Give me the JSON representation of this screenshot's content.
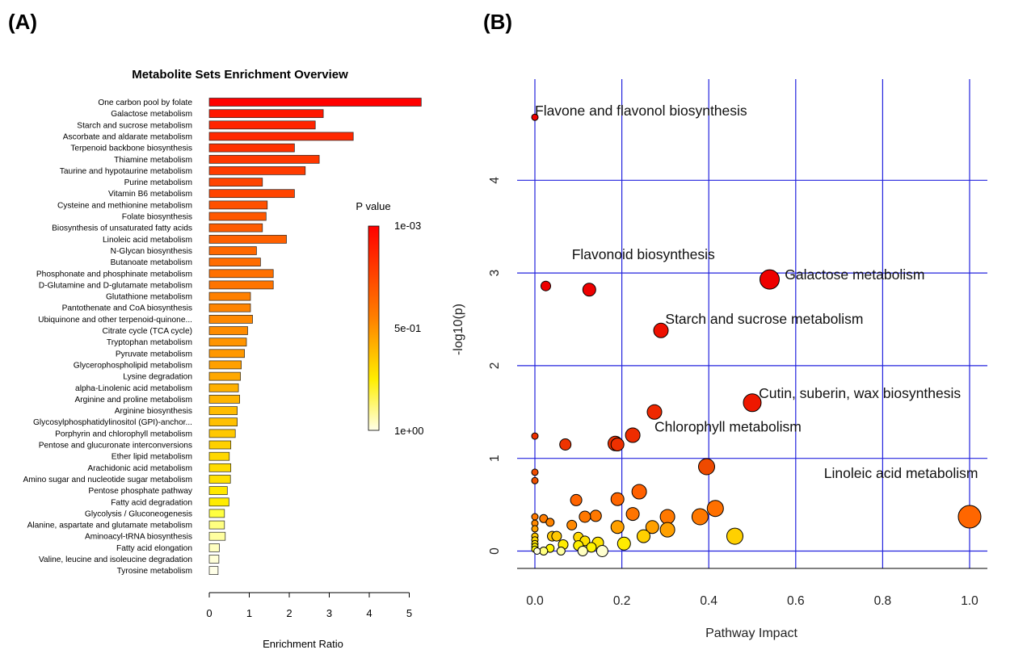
{
  "figure": {
    "panel_a_label": "(A)",
    "panel_b_label": "(B)"
  },
  "chart_data": [
    {
      "type": "bar",
      "orientation": "horizontal",
      "title": "Metabolite Sets Enrichment Overview",
      "xlabel": "Enrichment Ratio",
      "ylabel": "",
      "xlim": [
        0,
        5.3
      ],
      "xticks": [
        "0",
        "1",
        "2",
        "3",
        "4",
        "5"
      ],
      "grid": false,
      "legend": {
        "title": "P value",
        "placement": "right",
        "labels": [
          "1e-03",
          "5e-01",
          "1e+00"
        ],
        "color_scale": [
          "#ff0000",
          "#ff8000",
          "#ffff00",
          "#ffffe0"
        ]
      },
      "categories": [
        "One carbon pool by folate",
        "Galactose metabolism",
        "Starch and sucrose metabolism",
        "Ascorbate and aldarate metabolism",
        "Terpenoid backbone biosynthesis",
        "Thiamine metabolism",
        "Taurine and hypotaurine metabolism",
        "Purine metabolism",
        "Vitamin B6 metabolism",
        "Cysteine and methionine metabolism",
        "Folate biosynthesis",
        "Biosynthesis of unsaturated fatty acids",
        "Linoleic acid metabolism",
        "N-Glycan biosynthesis",
        "Butanoate metabolism",
        "Phosphonate and phosphinate metabolism",
        "D-Glutamine and D-glutamate metabolism",
        "Glutathione metabolism",
        "Pantothenate and CoA biosynthesis",
        "Ubiquinone and other terpenoid-quinone...",
        "Citrate cycle (TCA cycle)",
        "Tryptophan metabolism",
        "Pyruvate metabolism",
        "Glycerophospholipid metabolism",
        "Lysine degradation",
        "alpha-Linolenic acid metabolism",
        "Arginine and proline metabolism",
        "Arginine biosynthesis",
        "Glycosylphosphatidylinositol (GPI)-anchor...",
        "Porphyrin and chlorophyll metabolism",
        "Pentose and glucuronate interconversions",
        "Ether lipid metabolism",
        "Arachidonic acid metabolism",
        "Amino sugar and nucleotide sugar metabolism",
        "Pentose phosphate pathway",
        "Fatty acid degradation",
        "Glycolysis / Gluconeogenesis",
        "Alanine, aspartate and glutamate metabolism",
        "Aminoacyl-tRNA biosynthesis",
        "Fatty acid elongation",
        "Valine, leucine and isoleucine degradation",
        "Tyrosine metabolism"
      ],
      "values": [
        5.3,
        2.85,
        2.65,
        3.6,
        2.13,
        2.75,
        2.4,
        1.33,
        2.13,
        1.45,
        1.42,
        1.33,
        1.93,
        1.18,
        1.28,
        1.6,
        1.6,
        1.03,
        1.03,
        1.08,
        0.96,
        0.93,
        0.88,
        0.8,
        0.78,
        0.73,
        0.76,
        0.7,
        0.7,
        0.65,
        0.54,
        0.5,
        0.54,
        0.53,
        0.45,
        0.49,
        0.38,
        0.38,
        0.4,
        0.25,
        0.24,
        0.22
      ],
      "colors": [
        "#ff0000",
        "#ff1800",
        "#ff2400",
        "#ff2800",
        "#ff3000",
        "#ff3800",
        "#ff3c00",
        "#ff4400",
        "#ff4400",
        "#ff5000",
        "#ff5800",
        "#ff5c00",
        "#ff6000",
        "#ff6800",
        "#ff6c00",
        "#ff7000",
        "#ff7400",
        "#ff8000",
        "#ff8400",
        "#ff8800",
        "#ff8c00",
        "#ff9400",
        "#ff9800",
        "#ffa000",
        "#ffa800",
        "#ffb000",
        "#ffb400",
        "#ffbc00",
        "#ffc000",
        "#ffc800",
        "#ffd000",
        "#ffd800",
        "#ffdc00",
        "#ffe000",
        "#ffe800",
        "#ffec00",
        "#ffff40",
        "#ffff80",
        "#ffffa0",
        "#ffffc0",
        "#ffffd8",
        "#ffffe8"
      ]
    },
    {
      "type": "scatter",
      "title": "",
      "xlabel": "Pathway Impact",
      "ylabel": "-log10(p)",
      "xlim": [
        -0.04,
        1.04
      ],
      "ylim": [
        -0.2,
        4.9
      ],
      "xticks": [
        "0.0",
        "0.2",
        "0.4",
        "0.6",
        "0.8",
        "1.0"
      ],
      "yticks": [
        "0",
        "1",
        "2",
        "3",
        "4"
      ],
      "grid": true,
      "gridColor": "#2222dd",
      "annotations": [
        {
          "text": "Flavone and flavonol biosynthesis",
          "x": 0.0,
          "y": 4.7
        },
        {
          "text": "Flavonoid biosynthesis",
          "x": 0.085,
          "y": 3.15
        },
        {
          "text": "Galactose metabolism",
          "x": 0.575,
          "y": 2.93
        },
        {
          "text": "Starch and sucrose metabolism",
          "x": 0.3,
          "y": 2.45
        },
        {
          "text": "Cutin, suberin, wax biosynthesis",
          "x": 0.515,
          "y": 1.65
        },
        {
          "text": "Chlorophyll metabolism",
          "x": 0.275,
          "y": 1.29
        },
        {
          "text": "Linoleic acid metabolism",
          "x": 0.665,
          "y": 0.79
        }
      ],
      "points": [
        {
          "x": 0.0,
          "y": 4.68,
          "size": 4,
          "color": "#ee0000"
        },
        {
          "x": 0.025,
          "y": 2.86,
          "size": 6,
          "color": "#ee0000"
        },
        {
          "x": 0.125,
          "y": 2.82,
          "size": 8,
          "color": "#ee0000"
        },
        {
          "x": 0.54,
          "y": 2.93,
          "size": 12,
          "color": "#ee0000"
        },
        {
          "x": 0.29,
          "y": 2.38,
          "size": 9,
          "color": "#ee1000"
        },
        {
          "x": 0.5,
          "y": 1.6,
          "size": 11,
          "color": "#ee1800"
        },
        {
          "x": 0.275,
          "y": 1.5,
          "size": 9,
          "color": "#ee2800"
        },
        {
          "x": 0.225,
          "y": 1.25,
          "size": 9,
          "color": "#ee2c00"
        },
        {
          "x": 0.185,
          "y": 1.16,
          "size": 9,
          "color": "#ee3000"
        },
        {
          "x": 0.19,
          "y": 1.15,
          "size": 8,
          "color": "#ee3000"
        },
        {
          "x": 0.07,
          "y": 1.15,
          "size": 7,
          "color": "#ee3400"
        },
        {
          "x": 0.0,
          "y": 1.24,
          "size": 4,
          "color": "#ee3000"
        },
        {
          "x": 0.395,
          "y": 0.91,
          "size": 10,
          "color": "#ee4a00"
        },
        {
          "x": 0.0,
          "y": 0.85,
          "size": 4,
          "color": "#ee4c00"
        },
        {
          "x": 0.0,
          "y": 0.76,
          "size": 4,
          "color": "#ee5000"
        },
        {
          "x": 1.0,
          "y": 0.37,
          "size": 14,
          "color": "#ff6600"
        },
        {
          "x": 0.24,
          "y": 0.64,
          "size": 9,
          "color": "#ff6000"
        },
        {
          "x": 0.095,
          "y": 0.55,
          "size": 7,
          "color": "#ff6400"
        },
        {
          "x": 0.19,
          "y": 0.56,
          "size": 8,
          "color": "#ff6600"
        },
        {
          "x": 0.415,
          "y": 0.46,
          "size": 10,
          "color": "#ff7000"
        },
        {
          "x": 0.38,
          "y": 0.37,
          "size": 10,
          "color": "#ff7800"
        },
        {
          "x": 0.305,
          "y": 0.37,
          "size": 9,
          "color": "#ff7800"
        },
        {
          "x": 0.225,
          "y": 0.4,
          "size": 8,
          "color": "#ff7400"
        },
        {
          "x": 0.14,
          "y": 0.38,
          "size": 7,
          "color": "#ff7800"
        },
        {
          "x": 0.115,
          "y": 0.37,
          "size": 7,
          "color": "#ff7800"
        },
        {
          "x": 0.0,
          "y": 0.37,
          "size": 4,
          "color": "#ff7800"
        },
        {
          "x": 0.02,
          "y": 0.35,
          "size": 5,
          "color": "#ff7c00"
        },
        {
          "x": 0.035,
          "y": 0.31,
          "size": 5,
          "color": "#ff8400"
        },
        {
          "x": 0.085,
          "y": 0.28,
          "size": 6,
          "color": "#ff8800"
        },
        {
          "x": 0.0,
          "y": 0.3,
          "size": 4,
          "color": "#ff8800"
        },
        {
          "x": 0.305,
          "y": 0.23,
          "size": 9,
          "color": "#ffa000"
        },
        {
          "x": 0.27,
          "y": 0.26,
          "size": 8,
          "color": "#ffa000"
        },
        {
          "x": 0.19,
          "y": 0.26,
          "size": 8,
          "color": "#ffa000"
        },
        {
          "x": 0.0,
          "y": 0.24,
          "size": 4,
          "color": "#ffa000"
        },
        {
          "x": 0.46,
          "y": 0.16,
          "size": 10,
          "color": "#ffd000"
        },
        {
          "x": 0.25,
          "y": 0.16,
          "size": 8,
          "color": "#ffd000"
        },
        {
          "x": 0.04,
          "y": 0.16,
          "size": 6,
          "color": "#ffc800"
        },
        {
          "x": 0.05,
          "y": 0.16,
          "size": 6,
          "color": "#ffc800"
        },
        {
          "x": 0.0,
          "y": 0.16,
          "size": 4,
          "color": "#ffc800"
        },
        {
          "x": 0.1,
          "y": 0.15,
          "size": 6,
          "color": "#ffd800"
        },
        {
          "x": 0.0,
          "y": 0.12,
          "size": 4,
          "color": "#ffd800"
        },
        {
          "x": 0.115,
          "y": 0.11,
          "size": 6,
          "color": "#ffe000"
        },
        {
          "x": 0.145,
          "y": 0.09,
          "size": 7,
          "color": "#ffe400"
        },
        {
          "x": 0.0,
          "y": 0.08,
          "size": 4,
          "color": "#ffe400"
        },
        {
          "x": 0.205,
          "y": 0.08,
          "size": 8,
          "color": "#ffec00"
        },
        {
          "x": 0.065,
          "y": 0.07,
          "size": 6,
          "color": "#ffec00"
        },
        {
          "x": 0.1,
          "y": 0.06,
          "size": 6,
          "color": "#fff000"
        },
        {
          "x": 0.0,
          "y": 0.05,
          "size": 4,
          "color": "#fff000"
        },
        {
          "x": 0.13,
          "y": 0.04,
          "size": 6,
          "color": "#fff400"
        },
        {
          "x": 0.035,
          "y": 0.03,
          "size": 5,
          "color": "#fff600"
        },
        {
          "x": 0.0,
          "y": 0.02,
          "size": 4,
          "color": "#fffa00"
        },
        {
          "x": 0.02,
          "y": 0.0,
          "size": 5,
          "color": "#ffff80"
        },
        {
          "x": 0.06,
          "y": 0.0,
          "size": 5,
          "color": "#ffffa0"
        },
        {
          "x": 0.11,
          "y": 0.0,
          "size": 6,
          "color": "#ffffc0"
        },
        {
          "x": 0.155,
          "y": 0.0,
          "size": 7,
          "color": "#ffffd0"
        },
        {
          "x": 0.005,
          "y": 0.0,
          "size": 4,
          "color": "#ffffe0"
        }
      ]
    }
  ]
}
